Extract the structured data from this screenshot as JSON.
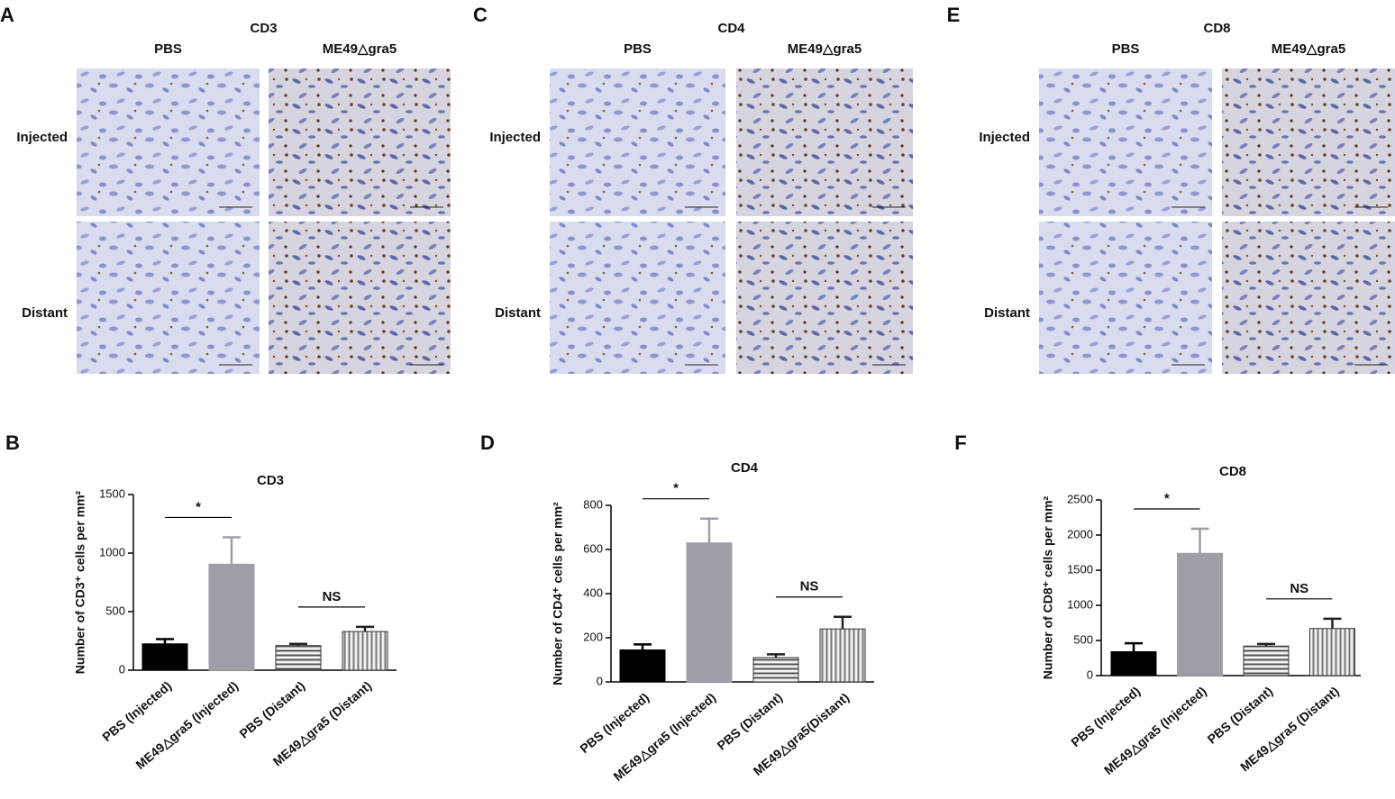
{
  "micrographs": [
    {
      "panel": "A",
      "title": "CD3",
      "columns": [
        "PBS",
        "ME49△gra5"
      ],
      "rows": [
        "Injected",
        "Distant"
      ]
    },
    {
      "panel": "C",
      "title": "CD4",
      "columns": [
        "PBS",
        "ME49△gra5"
      ],
      "rows": [
        "Injected",
        "Distant"
      ]
    },
    {
      "panel": "E",
      "title": "CD8",
      "columns": [
        "PBS",
        "ME49△gra5"
      ],
      "rows": [
        "Injected",
        "Distant"
      ]
    }
  ],
  "chart_data": [
    {
      "type": "bar",
      "panel": "B",
      "title": "CD3",
      "ylabel": "Number of CD3⁺ cells per mm²",
      "categories": [
        "PBS (Injected)",
        "ME49△gra5 (Injected)",
        "PBS (Distant)",
        "ME49△gra5 (Distant)"
      ],
      "values": [
        225,
        905,
        210,
        330
      ],
      "errors": [
        40,
        230,
        15,
        40
      ],
      "colors": [
        "#000000",
        "#9e9ea6",
        "#555555",
        "#777777"
      ],
      "patterns": [
        "solid",
        "solid",
        "hlines",
        "vlines"
      ],
      "ylim": [
        0,
        1500
      ],
      "yticks": [
        0,
        500,
        1000,
        1500
      ],
      "annotations": [
        {
          "text": "*",
          "from": 0,
          "to": 1
        },
        {
          "text": "NS",
          "from": 2,
          "to": 3
        }
      ]
    },
    {
      "type": "bar",
      "panel": "D",
      "title": "CD4",
      "ylabel": "Number of CD4⁺ cells per mm²",
      "categories": [
        "PBS (Injected)",
        "ME49△gra5 (Injected)",
        "PBS (Distant)",
        "ME49△gra5(Distant)"
      ],
      "values": [
        145,
        630,
        110,
        240
      ],
      "errors": [
        25,
        110,
        15,
        55
      ],
      "colors": [
        "#000000",
        "#9e9ea6",
        "#555555",
        "#777777"
      ],
      "patterns": [
        "solid",
        "solid",
        "hlines",
        "vlines"
      ],
      "ylim": [
        0,
        800
      ],
      "yticks": [
        0,
        200,
        400,
        600,
        800
      ],
      "annotations": [
        {
          "text": "*",
          "from": 0,
          "to": 1
        },
        {
          "text": "NS",
          "from": 2,
          "to": 3
        }
      ]
    },
    {
      "type": "bar",
      "panel": "F",
      "title": "CD8",
      "ylabel": "Number of CD8⁺ cells per mm²",
      "categories": [
        "PBS (Injected)",
        "ME49△gra5 (Injected)",
        "PBS (Distant)",
        "ME49△gra5 (Distant)"
      ],
      "values": [
        340,
        1740,
        420,
        670
      ],
      "errors": [
        120,
        350,
        30,
        140
      ],
      "colors": [
        "#000000",
        "#9e9ea6",
        "#555555",
        "#777777"
      ],
      "patterns": [
        "solid",
        "solid",
        "hlines",
        "vlines"
      ],
      "ylim": [
        0,
        2500
      ],
      "yticks": [
        0,
        500,
        1000,
        1500,
        2000,
        2500
      ],
      "annotations": [
        {
          "text": "*",
          "from": 0,
          "to": 1
        },
        {
          "text": "NS",
          "from": 2,
          "to": 3
        }
      ]
    }
  ]
}
